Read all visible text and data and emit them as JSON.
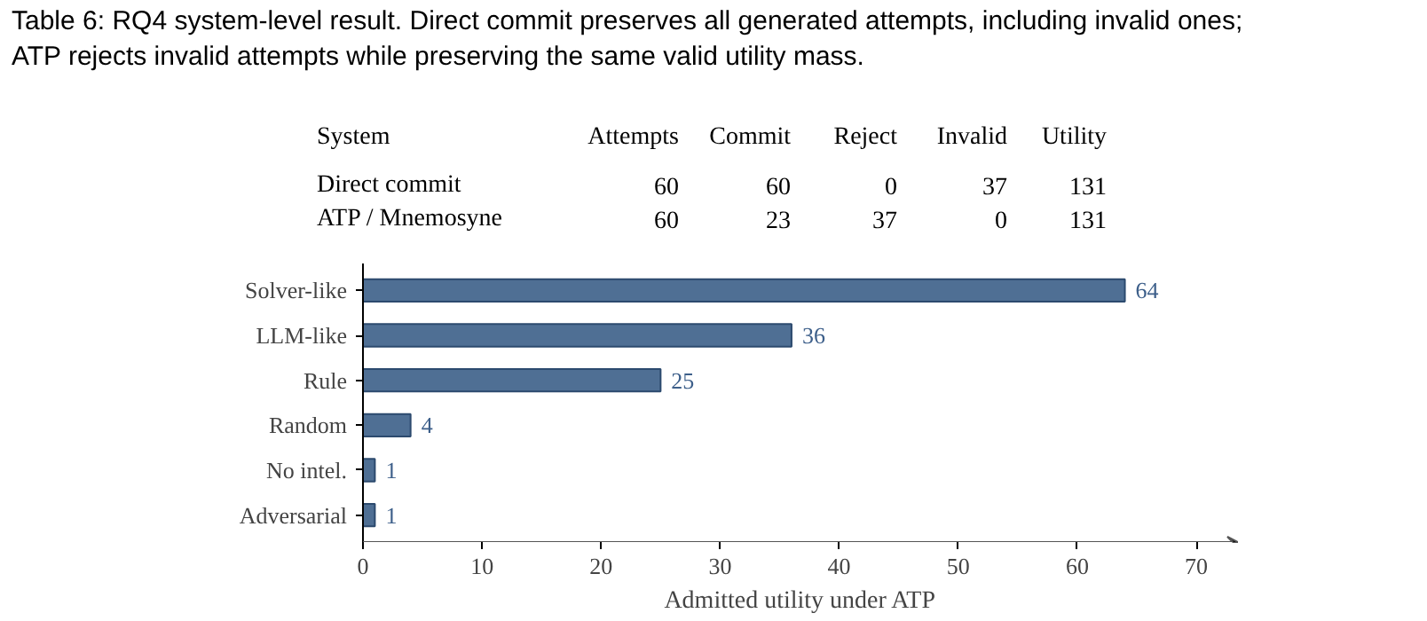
{
  "chart_data": {
    "type": "bar",
    "orientation": "horizontal",
    "title": "Table 6: RQ4 system-level result. Direct commit preserves all generated attempts, including invalid ones; ATP rejects invalid attempts while preserving the same valid utility mass.",
    "annotations": [
      "System",
      "Attempts",
      "Commit",
      "Reject",
      "Invalid",
      "Utility",
      "Direct commit",
      "60",
      "60",
      "0",
      "37",
      "131",
      "ATP / Mnemosyne",
      "60",
      "23",
      "37",
      "0",
      "131"
    ],
    "categories": [
      "Solver-like",
      "LLM-like",
      "Rule",
      "Random",
      "No intel.",
      "Adversarial"
    ],
    "values": [
      64,
      36,
      25,
      4,
      1,
      1
    ],
    "color": "#4f6f94",
    "xlabel": "Admitted utility under ATP",
    "xlim": [
      0,
      73.5
    ],
    "xticks": [
      0,
      10,
      20,
      30,
      40,
      50,
      60,
      70
    ],
    "data_labels": true,
    "grid": false
  }
}
